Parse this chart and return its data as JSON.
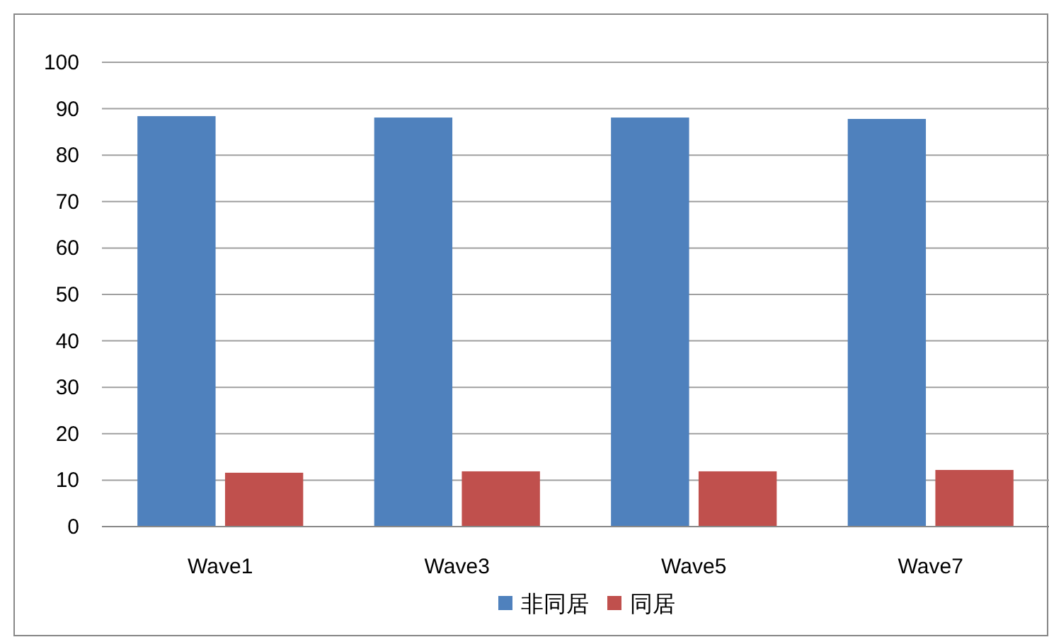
{
  "chart_data": {
    "type": "bar",
    "categories": [
      "Wave1",
      "Wave3",
      "Wave5",
      "Wave7"
    ],
    "series": [
      {
        "name": "非同居",
        "color": "#4f81bd",
        "values": [
          88.4,
          88.1,
          88.1,
          87.8
        ]
      },
      {
        "name": "同居",
        "color": "#c0504d",
        "values": [
          11.6,
          11.9,
          11.9,
          12.2
        ]
      }
    ],
    "ylim": [
      0,
      100
    ],
    "yticks": [
      0,
      10,
      20,
      30,
      40,
      50,
      60,
      70,
      80,
      90,
      100
    ],
    "grid": "y",
    "legend": "bottom"
  }
}
